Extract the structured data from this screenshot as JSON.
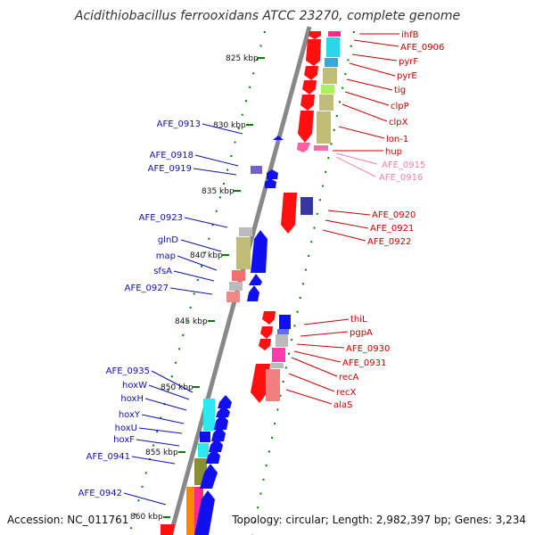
{
  "title": "Acidithiobacillus ferrooxidans ATCC 23270, complete genome",
  "footer": {
    "accession": "Accession: NC_011761",
    "topology": "Topology: circular; Length: 2,982,397 bp; Genes: 3,234"
  },
  "colors": {
    "forward_label": "#cc0000",
    "reverse_label": "#1010b0",
    "light_label": "#f080b0",
    "tick": "#008000",
    "backbone": "#888888"
  },
  "scale_labels": [
    "825 kbp",
    "830 kbp",
    "835 kbp",
    "840 kbp",
    "845 kbp",
    "850 kbp",
    "855 kbp",
    "860 kbp"
  ],
  "forward_labels": [
    "ihfB",
    "AFE_0906",
    "pyrF",
    "pyrE",
    "tig",
    "clpP",
    "clpX",
    "lon-1",
    "hup",
    "AFE_0915",
    "AFE_0916",
    "AFE_0920",
    "AFE_0921",
    "AFE_0922",
    "thiL",
    "pgpA",
    "AFE_0930",
    "AFE_0931",
    "recA",
    "recX",
    "alaS"
  ],
  "reverse_labels": [
    "AFE_0913",
    "AFE_0918",
    "AFE_0919",
    "AFE_0923",
    "glnD",
    "map",
    "sfsA",
    "AFE_0927",
    "AFE_0935",
    "hoxW",
    "hoxH",
    "hoxY",
    "hoxU",
    "hoxF",
    "AFE_0941",
    "AFE_0942"
  ]
}
